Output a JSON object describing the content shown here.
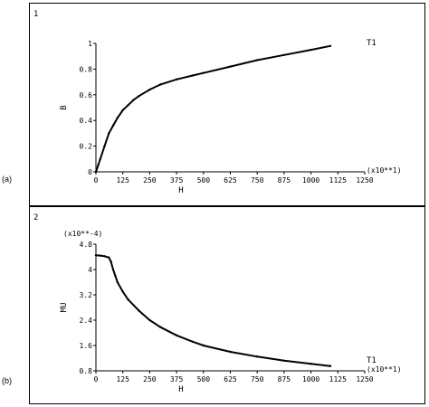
{
  "panels": [
    {
      "number": "1",
      "side_label": "(a)",
      "curve_label": "T1"
    },
    {
      "number": "2",
      "side_label": "(b)",
      "curve_label": "T1"
    }
  ],
  "chart_data": [
    {
      "type": "line",
      "xlabel": "H",
      "ylabel": "B",
      "x_multiplier": "(x10**1)",
      "y_multiplier": "",
      "xlim": [
        0,
        1250
      ],
      "ylim": [
        0,
        1
      ],
      "x_ticks": [
        "0",
        "125",
        "250",
        "375",
        "500",
        "625",
        "750",
        "875",
        "1000",
        "1125",
        "1250"
      ],
      "y_ticks": [
        "0",
        "0.2",
        "0.4",
        "0.6",
        "0.8",
        "1"
      ],
      "grid": false,
      "series": [
        {
          "name": "T1",
          "x": [
            0,
            10,
            20,
            40,
            60,
            80,
            100,
            125,
            150,
            175,
            200,
            250,
            300,
            375,
            450,
            500,
            625,
            750,
            875,
            1000,
            1090
          ],
          "y": [
            0,
            0.05,
            0.1,
            0.2,
            0.3,
            0.36,
            0.42,
            0.48,
            0.52,
            0.56,
            0.59,
            0.64,
            0.68,
            0.72,
            0.75,
            0.77,
            0.82,
            0.87,
            0.91,
            0.95,
            0.98
          ]
        }
      ]
    },
    {
      "type": "line",
      "xlabel": "H",
      "ylabel": "MU",
      "x_multiplier": "(x10**1)",
      "y_multiplier": "(x10**-4)",
      "xlim": [
        0,
        1250
      ],
      "ylim": [
        0.8,
        4.8
      ],
      "x_ticks": [
        "0",
        "125",
        "250",
        "375",
        "500",
        "625",
        "750",
        "875",
        "1000",
        "1125",
        "1250"
      ],
      "y_ticks": [
        "0.8",
        "1.6",
        "2.4",
        "3.2",
        "4",
        "4.8"
      ],
      "grid": false,
      "series": [
        {
          "name": "T1",
          "x": [
            0,
            20,
            40,
            60,
            70,
            80,
            90,
            100,
            125,
            150,
            200,
            250,
            300,
            375,
            450,
            500,
            625,
            750,
            875,
            1000,
            1090
          ],
          "y": [
            4.45,
            4.44,
            4.42,
            4.38,
            4.25,
            4.0,
            3.8,
            3.6,
            3.3,
            3.05,
            2.7,
            2.4,
            2.18,
            1.92,
            1.72,
            1.6,
            1.4,
            1.25,
            1.12,
            1.02,
            0.95
          ]
        }
      ]
    }
  ]
}
